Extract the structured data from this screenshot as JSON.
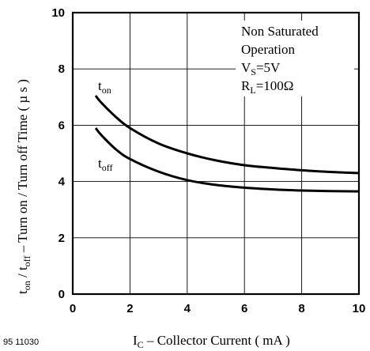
{
  "chart_data": {
    "type": "line",
    "title": "",
    "xlabel": {
      "main": "I",
      "sub": "C",
      "rest": " – Collector Current ( mA )"
    },
    "ylabel": {
      "p1": "t",
      "s1": "on",
      "p2": " / t",
      "s2": "off",
      "p3": "  – Turn on / Turn off Time ( µ s )"
    },
    "xlim": [
      0,
      10
    ],
    "ylim": [
      0,
      10
    ],
    "xticks": [
      "0",
      "2",
      "4",
      "6",
      "8",
      "10"
    ],
    "yticks": [
      "0",
      "2",
      "4",
      "6",
      "8",
      "10"
    ],
    "grid": true,
    "series": [
      {
        "name": "on",
        "prefix": "t",
        "x": [
          0.8,
          1.0,
          1.5,
          2.0,
          3.0,
          4.0,
          5.0,
          6.0,
          7.0,
          8.0,
          9.0,
          10.0
        ],
        "y": [
          7.05,
          6.8,
          6.3,
          5.9,
          5.35,
          5.0,
          4.75,
          4.58,
          4.48,
          4.4,
          4.34,
          4.3
        ]
      },
      {
        "name": "off",
        "prefix": "t",
        "x": [
          0.8,
          1.0,
          1.5,
          2.0,
          3.0,
          4.0,
          5.0,
          6.0,
          7.0,
          8.0,
          9.0,
          10.0
        ],
        "y": [
          5.9,
          5.65,
          5.15,
          4.8,
          4.35,
          4.05,
          3.88,
          3.78,
          3.72,
          3.68,
          3.66,
          3.65
        ]
      }
    ],
    "annotation": {
      "line1": "Non Saturated",
      "line2": "Operation",
      "vs_main": "V",
      "vs_sub": "S",
      "vs_rest": "=5V",
      "rl_main": "R",
      "rl_sub": "L",
      "rl_rest": "=100Ω"
    },
    "figure_number": "95 11030"
  }
}
